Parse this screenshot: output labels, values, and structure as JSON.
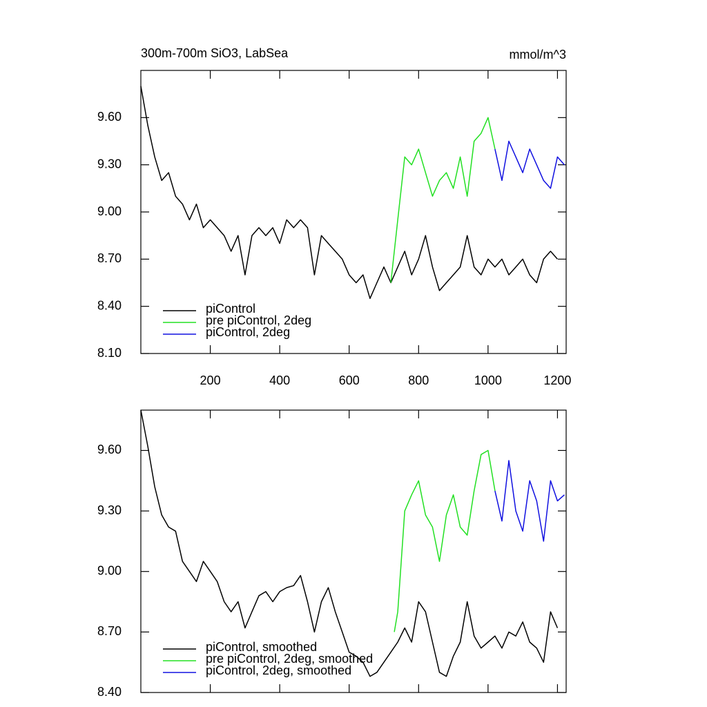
{
  "chart_data": [
    {
      "type": "line",
      "title": "300m-700m SiO3, LabSea",
      "subtitle": "mmol/m^3",
      "xlim": [
        0,
        1225
      ],
      "ylim": [
        8.1,
        9.9
      ],
      "xticks": [
        200,
        400,
        600,
        800,
        1000,
        1200
      ],
      "yticks": [
        {
          "value": 8.1,
          "label": "8.10"
        },
        {
          "value": 8.4,
          "label": "8.40"
        },
        {
          "value": 8.7,
          "label": "8.70"
        },
        {
          "value": 9.0,
          "label": "9.00"
        },
        {
          "value": 9.3,
          "label": "9.30"
        },
        {
          "value": 9.6,
          "label": "9.60"
        }
      ],
      "legend": "lower left",
      "series": [
        {
          "name": "piControl",
          "color": "#000000",
          "x": [
            0,
            20,
            40,
            60,
            80,
            100,
            120,
            140,
            160,
            180,
            200,
            220,
            240,
            260,
            280,
            300,
            320,
            340,
            360,
            380,
            400,
            420,
            440,
            460,
            480,
            500,
            520,
            540,
            560,
            580,
            600,
            620,
            640,
            660,
            680,
            700,
            720,
            740,
            760,
            780,
            800,
            820,
            840,
            860,
            880,
            900,
            920,
            940,
            960,
            980,
            1000,
            1020,
            1040,
            1060,
            1080,
            1100,
            1120,
            1140,
            1160,
            1180,
            1200
          ],
          "values": [
            9.8,
            9.55,
            9.35,
            9.2,
            9.25,
            9.1,
            9.05,
            8.95,
            9.05,
            8.9,
            8.95,
            8.9,
            8.85,
            8.75,
            8.85,
            8.6,
            8.85,
            8.9,
            8.85,
            8.9,
            8.8,
            8.95,
            8.9,
            8.95,
            8.9,
            8.6,
            8.85,
            8.8,
            8.75,
            8.7,
            8.6,
            8.55,
            8.6,
            8.45,
            8.55,
            8.65,
            8.55,
            8.65,
            8.75,
            8.6,
            8.7,
            8.85,
            8.65,
            8.5,
            8.55,
            8.6,
            8.65,
            8.85,
            8.65,
            8.6,
            8.7,
            8.65,
            8.7,
            8.6,
            8.65,
            8.7,
            8.6,
            8.55,
            8.7,
            8.75,
            8.7
          ]
        },
        {
          "name": "pre piControl, 2deg",
          "color": "#22e022",
          "x": [
            720,
            740,
            760,
            780,
            800,
            820,
            840,
            860,
            880,
            900,
            920,
            940,
            960,
            980,
            1000,
            1020
          ],
          "values": [
            8.55,
            8.95,
            9.35,
            9.3,
            9.4,
            9.25,
            9.1,
            9.2,
            9.25,
            9.15,
            9.35,
            9.1,
            9.45,
            9.5,
            9.6,
            9.4
          ]
        },
        {
          "name": "piControl, 2deg",
          "color": "#1010e0",
          "x": [
            1020,
            1040,
            1060,
            1080,
            1100,
            1120,
            1140,
            1160,
            1180,
            1200,
            1220
          ],
          "values": [
            9.4,
            9.2,
            9.45,
            9.35,
            9.25,
            9.4,
            9.3,
            9.2,
            9.15,
            9.35,
            9.3
          ]
        }
      ]
    },
    {
      "type": "line",
      "xlim": [
        0,
        1225
      ],
      "ylim": [
        8.4,
        9.8
      ],
      "xticks": [
        200,
        400,
        600,
        800,
        1000,
        1200
      ],
      "yticks": [
        {
          "value": 8.4,
          "label": "8.40"
        },
        {
          "value": 8.7,
          "label": "8.70"
        },
        {
          "value": 9.0,
          "label": "9.00"
        },
        {
          "value": 9.3,
          "label": "9.30"
        },
        {
          "value": 9.6,
          "label": "9.60"
        }
      ],
      "legend": "lower left",
      "series": [
        {
          "name": "piControl, smoothed",
          "color": "#000000",
          "x": [
            0,
            20,
            40,
            60,
            80,
            100,
            120,
            140,
            160,
            180,
            200,
            220,
            240,
            260,
            280,
            300,
            320,
            340,
            360,
            380,
            400,
            420,
            440,
            460,
            480,
            500,
            520,
            540,
            560,
            580,
            600,
            620,
            640,
            660,
            680,
            700,
            720,
            740,
            760,
            780,
            800,
            820,
            840,
            860,
            880,
            900,
            920,
            940,
            960,
            980,
            1000,
            1020,
            1040,
            1060,
            1080,
            1100,
            1120,
            1140,
            1160,
            1180,
            1200
          ],
          "values": [
            9.8,
            9.62,
            9.42,
            9.28,
            9.22,
            9.2,
            9.05,
            9.0,
            8.95,
            9.05,
            9.0,
            8.95,
            8.85,
            8.8,
            8.85,
            8.72,
            8.8,
            8.88,
            8.9,
            8.85,
            8.9,
            8.92,
            8.93,
            8.98,
            8.85,
            8.7,
            8.85,
            8.92,
            8.8,
            8.7,
            8.6,
            8.58,
            8.55,
            8.48,
            8.5,
            8.55,
            8.6,
            8.65,
            8.72,
            8.65,
            8.85,
            8.8,
            8.65,
            8.5,
            8.48,
            8.58,
            8.65,
            8.85,
            8.68,
            8.62,
            8.65,
            8.68,
            8.62,
            8.7,
            8.68,
            8.75,
            8.65,
            8.62,
            8.55,
            8.8,
            8.72
          ]
        },
        {
          "name": "pre piControl, 2deg, smoothed",
          "color": "#22e022",
          "x": [
            730,
            740,
            760,
            780,
            800,
            820,
            840,
            860,
            880,
            900,
            920,
            940,
            960,
            980,
            1000,
            1020
          ],
          "values": [
            8.7,
            8.8,
            9.3,
            9.38,
            9.45,
            9.28,
            9.22,
            9.05,
            9.28,
            9.38,
            9.22,
            9.18,
            9.4,
            9.58,
            9.6,
            9.4
          ]
        },
        {
          "name": "piControl, 2deg, smoothed",
          "color": "#1010e0",
          "x": [
            1020,
            1040,
            1060,
            1080,
            1100,
            1120,
            1140,
            1160,
            1180,
            1200,
            1220
          ],
          "values": [
            9.4,
            9.25,
            9.55,
            9.3,
            9.2,
            9.45,
            9.35,
            9.15,
            9.45,
            9.35,
            9.38
          ]
        }
      ]
    }
  ]
}
